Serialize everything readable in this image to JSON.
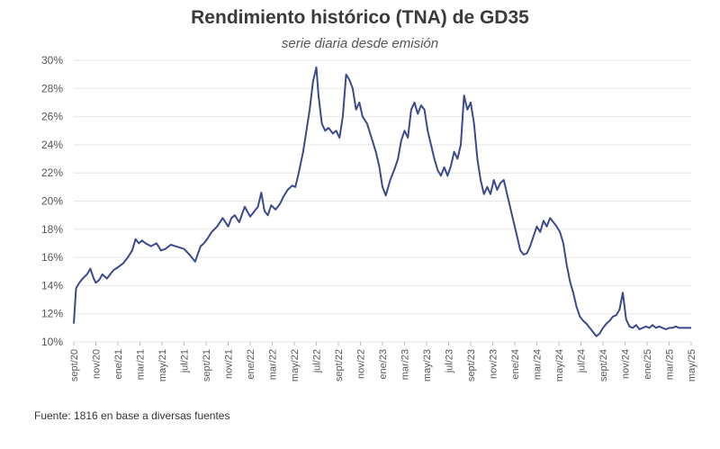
{
  "chart_data": {
    "type": "line",
    "title": "Rendimiento histórico (TNA) de GD35",
    "subtitle": "serie diaria desde emisión",
    "source": "Fuente: 1816 en base a diversas fuentes",
    "line_color": "#3b4a8c",
    "grid_color": "#e6e6e6",
    "ylim": [
      10,
      30
    ],
    "yticks": [
      "10%",
      "12%",
      "14%",
      "16%",
      "18%",
      "20%",
      "22%",
      "24%",
      "26%",
      "28%",
      "30%"
    ],
    "xlim": [
      0,
      56
    ],
    "xticks": [
      {
        "label": "sept/20",
        "x": 0
      },
      {
        "label": "nov/20",
        "x": 2
      },
      {
        "label": "ene/21",
        "x": 4
      },
      {
        "label": "mar/21",
        "x": 6
      },
      {
        "label": "may/21",
        "x": 8
      },
      {
        "label": "jul/21",
        "x": 10
      },
      {
        "label": "sept/21",
        "x": 12
      },
      {
        "label": "nov/21",
        "x": 14
      },
      {
        "label": "ene/22",
        "x": 16
      },
      {
        "label": "mar/22",
        "x": 18
      },
      {
        "label": "may/22",
        "x": 20
      },
      {
        "label": "jul/22",
        "x": 22
      },
      {
        "label": "sept/22",
        "x": 24
      },
      {
        "label": "nov/22",
        "x": 26
      },
      {
        "label": "ene/23",
        "x": 28
      },
      {
        "label": "mar/23",
        "x": 30
      },
      {
        "label": "may/23",
        "x": 32
      },
      {
        "label": "jul/23",
        "x": 34
      },
      {
        "label": "sept/23",
        "x": 36
      },
      {
        "label": "nov/23",
        "x": 38
      },
      {
        "label": "ene/24",
        "x": 40
      },
      {
        "label": "mar/24",
        "x": 42
      },
      {
        "label": "may/24",
        "x": 44
      },
      {
        "label": "jul/24",
        "x": 46
      },
      {
        "label": "sept/24",
        "x": 48
      },
      {
        "label": "nov/24",
        "x": 50
      },
      {
        "label": "ene/25",
        "x": 52
      },
      {
        "label": "mar/25",
        "x": 54
      },
      {
        "label": "may/25",
        "x": 56
      }
    ],
    "series": [
      {
        "name": "GD35 TNA",
        "x": [
          0,
          0.2,
          0.5,
          0.8,
          1.2,
          1.5,
          1.8,
          2.0,
          2.3,
          2.6,
          3.0,
          3.3,
          3.6,
          4.0,
          4.5,
          4.9,
          5.3,
          5.6,
          5.9,
          6.2,
          6.5,
          7.0,
          7.5,
          7.9,
          8.3,
          8.8,
          9.2,
          9.6,
          10.0,
          10.5,
          11.0,
          11.5,
          11.8,
          12.1,
          12.5,
          13.0,
          13.5,
          14.0,
          14.3,
          14.6,
          15.0,
          15.5,
          16.0,
          16.3,
          16.7,
          17.0,
          17.3,
          17.6,
          17.9,
          18.3,
          18.7,
          19.0,
          19.4,
          19.8,
          20.1,
          20.4,
          20.8,
          21.1,
          21.4,
          21.7,
          22.0,
          22.2,
          22.5,
          22.8,
          23.1,
          23.5,
          23.8,
          24.1,
          24.4,
          24.7,
          25.0,
          25.3,
          25.6,
          25.9,
          26.2,
          26.6,
          27.0,
          27.4,
          27.7,
          28.0,
          28.3,
          28.7,
          29.1,
          29.4,
          29.7,
          30.0,
          30.3,
          30.6,
          30.9,
          31.2,
          31.5,
          31.8,
          32.1,
          32.4,
          32.7,
          33.0,
          33.3,
          33.6,
          33.9,
          34.2,
          34.5,
          34.8,
          35.1,
          35.4,
          35.7,
          36.0,
          36.3,
          36.6,
          36.9,
          37.2,
          37.5,
          37.8,
          38.1,
          38.4,
          38.7,
          39.0,
          39.3,
          39.6,
          39.9,
          40.2,
          40.5,
          40.8,
          41.1,
          41.4,
          41.7,
          42.0,
          42.3,
          42.6,
          42.9,
          43.2,
          43.5,
          43.8,
          44.1,
          44.4,
          44.7,
          45.0,
          45.3,
          45.6,
          45.9,
          46.2,
          46.5,
          46.8,
          47.1,
          47.4,
          47.7,
          48.0,
          48.3,
          48.6,
          48.9,
          49.2,
          49.5,
          49.8,
          50.1,
          50.4,
          50.7,
          51.0,
          51.3,
          51.6,
          51.9,
          52.2,
          52.5,
          52.8,
          53.1,
          53.4,
          53.7,
          54.0,
          54.3,
          54.6,
          54.9,
          55.2,
          55.5,
          55.8,
          56.0
        ],
        "values": [
          11.3,
          13.8,
          14.2,
          14.5,
          14.8,
          15.2,
          14.5,
          14.2,
          14.4,
          14.8,
          14.5,
          14.8,
          15.1,
          15.3,
          15.6,
          16.0,
          16.5,
          17.3,
          17.0,
          17.2,
          17.0,
          16.8,
          17.0,
          16.5,
          16.6,
          16.9,
          16.8,
          16.7,
          16.6,
          16.2,
          15.7,
          16.8,
          17.0,
          17.3,
          17.8,
          18.2,
          18.8,
          18.2,
          18.8,
          19.0,
          18.5,
          19.6,
          18.9,
          19.2,
          19.6,
          20.6,
          19.3,
          19.0,
          19.7,
          19.4,
          19.8,
          20.3,
          20.8,
          21.1,
          21.0,
          22.0,
          23.5,
          25.0,
          26.5,
          28.5,
          29.5,
          27.5,
          25.5,
          25.0,
          25.2,
          24.8,
          25.0,
          24.5,
          26.0,
          29.0,
          28.6,
          28.0,
          26.5,
          27.0,
          26.0,
          25.5,
          24.5,
          23.5,
          22.5,
          21.0,
          20.4,
          21.5,
          22.3,
          23.0,
          24.3,
          25.0,
          24.5,
          26.5,
          27.0,
          26.2,
          26.8,
          26.5,
          25.0,
          24.0,
          23.0,
          22.2,
          21.8,
          22.4,
          21.8,
          22.5,
          23.5,
          23.0,
          24.0,
          27.5,
          26.5,
          27.0,
          25.5,
          23.0,
          21.5,
          20.5,
          21.0,
          20.5,
          21.5,
          20.8,
          21.3,
          21.5,
          20.5,
          19.5,
          18.5,
          17.5,
          16.5,
          16.2,
          16.3,
          16.8,
          17.5,
          18.2,
          17.8,
          18.6,
          18.2,
          18.8,
          18.5,
          18.2,
          17.8,
          17.0,
          15.5,
          14.3,
          13.5,
          12.5,
          11.8,
          11.5,
          11.3,
          11.0,
          10.7,
          10.4,
          10.6,
          11.0,
          11.3,
          11.5,
          11.8,
          11.9,
          12.3,
          13.5,
          11.6,
          11.1,
          11.0,
          11.2,
          10.9,
          11.0,
          11.1,
          11.0,
          11.2,
          11.0,
          11.1,
          11.0,
          10.9,
          11.0,
          11.0,
          11.1,
          11.0,
          11.0,
          11.0,
          11.0,
          11.0
        ]
      }
    ]
  }
}
